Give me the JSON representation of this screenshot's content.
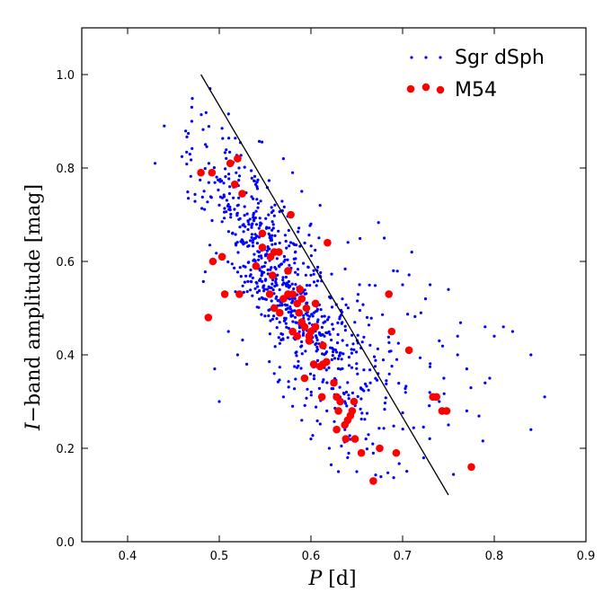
{
  "chart_data": {
    "type": "scatter",
    "xlabel": {
      "var": "P",
      "unit": " [d]"
    },
    "ylabel": {
      "var": "I",
      "rest": "−band amplitude [mag]"
    },
    "xlim": [
      0.35,
      0.9
    ],
    "ylim": [
      0.0,
      1.1
    ],
    "xticks": [
      "0.4",
      "0.5",
      "0.6",
      "0.7",
      "0.8",
      "0.9"
    ],
    "yticks": [
      "0.0",
      "0.2",
      "0.4",
      "0.6",
      "0.8",
      "1.0"
    ],
    "grid": false,
    "legend_position": "top-right",
    "line": {
      "x": [
        0.48,
        0.75
      ],
      "y": [
        1.0,
        0.1
      ],
      "color": "#000000"
    },
    "series": [
      {
        "name": "Sgr dSph",
        "color": "#0000ff",
        "marker": "small-dot",
        "cloud": [
          {
            "n": 700,
            "xmean": 0.57,
            "xsd": 0.045,
            "ymean": 0.55,
            "ysd": 0.15,
            "rho": -0.82
          },
          {
            "n": 110,
            "xmean": 0.665,
            "xsd": 0.055,
            "ymean": 0.42,
            "ysd": 0.13,
            "rho": -0.55
          }
        ],
        "points": [
          [
            0.43,
            0.81
          ],
          [
            0.44,
            0.89
          ],
          [
            0.49,
            0.97
          ],
          [
            0.47,
            0.93
          ],
          [
            0.47,
            0.9
          ],
          [
            0.84,
            0.24
          ],
          [
            0.855,
            0.31
          ],
          [
            0.84,
            0.4
          ],
          [
            0.8,
            0.44
          ],
          [
            0.79,
            0.46
          ],
          [
            0.81,
            0.46
          ],
          [
            0.82,
            0.45
          ],
          [
            0.79,
            0.34
          ],
          [
            0.795,
            0.35
          ],
          [
            0.77,
            0.28
          ],
          [
            0.77,
            0.37
          ],
          [
            0.76,
            0.4
          ],
          [
            0.76,
            0.44
          ],
          [
            0.75,
            0.54
          ],
          [
            0.71,
            0.62
          ],
          [
            0.72,
            0.49
          ],
          [
            0.725,
            0.52
          ],
          [
            0.73,
            0.55
          ],
          [
            0.745,
            0.35
          ],
          [
            0.74,
            0.3
          ],
          [
            0.75,
            0.25
          ],
          [
            0.74,
            0.43
          ],
          [
            0.68,
            0.65
          ],
          [
            0.69,
            0.58
          ],
          [
            0.7,
            0.55
          ],
          [
            0.5,
            0.3
          ],
          [
            0.495,
            0.37
          ],
          [
            0.52,
            0.4
          ],
          [
            0.51,
            0.45
          ],
          [
            0.53,
            0.38
          ],
          [
            0.56,
            0.36
          ],
          [
            0.57,
            0.31
          ],
          [
            0.59,
            0.26
          ],
          [
            0.63,
            0.15
          ],
          [
            0.64,
            0.18
          ],
          [
            0.65,
            0.15
          ],
          [
            0.66,
            0.22
          ],
          [
            0.62,
            0.2
          ],
          [
            0.6,
            0.22
          ],
          [
            0.58,
            0.29
          ],
          [
            0.57,
            0.82
          ],
          [
            0.58,
            0.79
          ],
          [
            0.59,
            0.75
          ],
          [
            0.61,
            0.72
          ],
          [
            0.6,
            0.68
          ]
        ]
      },
      {
        "name": "M54",
        "color": "#ff0000",
        "marker": "big-dot",
        "points": [
          [
            0.48,
            0.79
          ],
          [
            0.492,
            0.79
          ],
          [
            0.512,
            0.81
          ],
          [
            0.52,
            0.82
          ],
          [
            0.517,
            0.765
          ],
          [
            0.525,
            0.745
          ],
          [
            0.578,
            0.7
          ],
          [
            0.618,
            0.64
          ],
          [
            0.547,
            0.66
          ],
          [
            0.556,
            0.61
          ],
          [
            0.547,
            0.63
          ],
          [
            0.56,
            0.62
          ],
          [
            0.565,
            0.62
          ],
          [
            0.54,
            0.59
          ],
          [
            0.558,
            0.57
          ],
          [
            0.575,
            0.58
          ],
          [
            0.493,
            0.6
          ],
          [
            0.503,
            0.61
          ],
          [
            0.506,
            0.53
          ],
          [
            0.522,
            0.53
          ],
          [
            0.488,
            0.48
          ],
          [
            0.555,
            0.53
          ],
          [
            0.56,
            0.5
          ],
          [
            0.566,
            0.49
          ],
          [
            0.57,
            0.52
          ],
          [
            0.575,
            0.53
          ],
          [
            0.58,
            0.53
          ],
          [
            0.585,
            0.51
          ],
          [
            0.59,
            0.52
          ],
          [
            0.587,
            0.49
          ],
          [
            0.59,
            0.47
          ],
          [
            0.595,
            0.5
          ],
          [
            0.593,
            0.46
          ],
          [
            0.598,
            0.44
          ],
          [
            0.6,
            0.45
          ],
          [
            0.605,
            0.46
          ],
          [
            0.598,
            0.43
          ],
          [
            0.605,
            0.51
          ],
          [
            0.588,
            0.54
          ],
          [
            0.58,
            0.45
          ],
          [
            0.585,
            0.44
          ],
          [
            0.603,
            0.38
          ],
          [
            0.61,
            0.375
          ],
          [
            0.613,
            0.38
          ],
          [
            0.617,
            0.385
          ],
          [
            0.613,
            0.42
          ],
          [
            0.593,
            0.35
          ],
          [
            0.612,
            0.31
          ],
          [
            0.625,
            0.34
          ],
          [
            0.628,
            0.31
          ],
          [
            0.632,
            0.3
          ],
          [
            0.63,
            0.28
          ],
          [
            0.628,
            0.24
          ],
          [
            0.637,
            0.25
          ],
          [
            0.64,
            0.26
          ],
          [
            0.643,
            0.27
          ],
          [
            0.645,
            0.28
          ],
          [
            0.647,
            0.3
          ],
          [
            0.638,
            0.22
          ],
          [
            0.648,
            0.22
          ],
          [
            0.655,
            0.19
          ],
          [
            0.668,
            0.13
          ],
          [
            0.675,
            0.2
          ],
          [
            0.685,
            0.53
          ],
          [
            0.688,
            0.45
          ],
          [
            0.693,
            0.19
          ],
          [
            0.707,
            0.41
          ],
          [
            0.733,
            0.31
          ],
          [
            0.737,
            0.31
          ],
          [
            0.743,
            0.28
          ],
          [
            0.748,
            0.28
          ],
          [
            0.775,
            0.16
          ]
        ]
      }
    ]
  }
}
